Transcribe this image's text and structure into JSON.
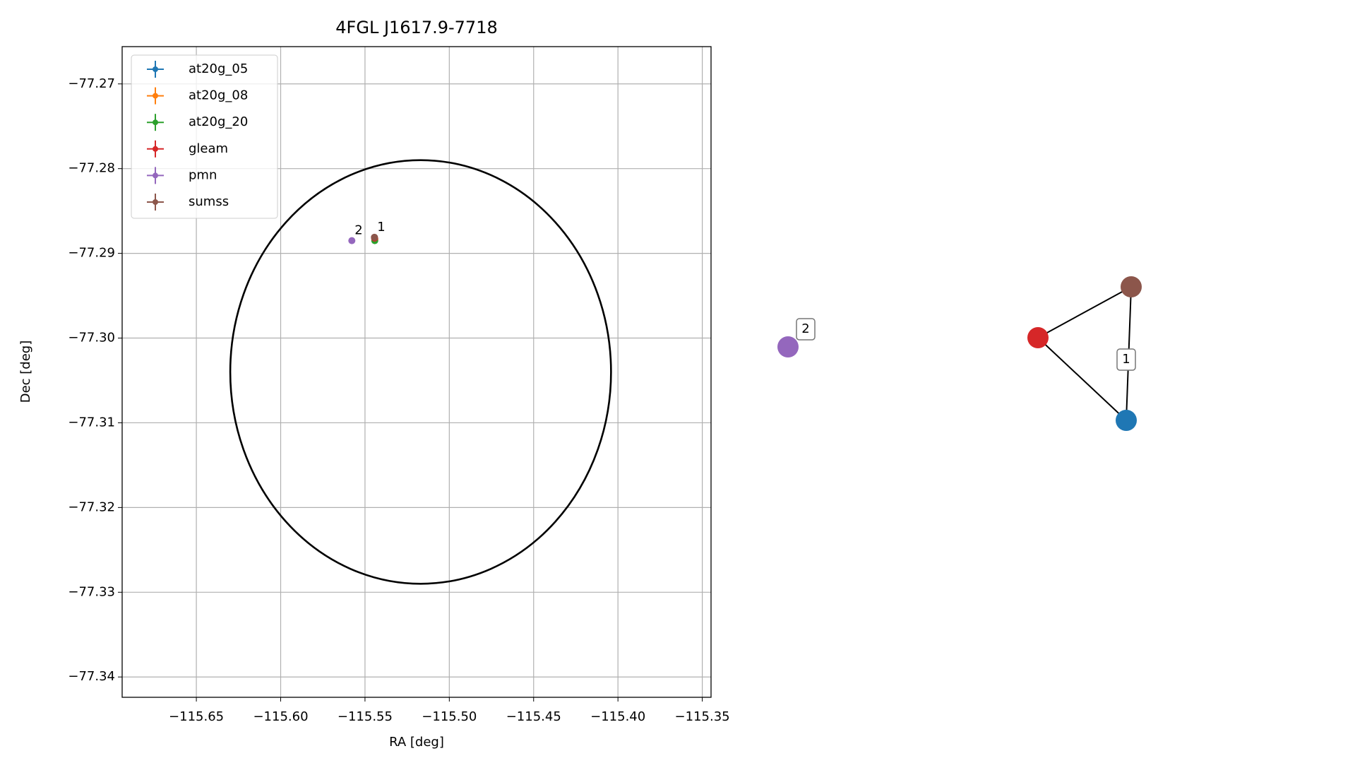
{
  "chart_data": {
    "type": "scatter",
    "title": "4FGL J1617.9-7718",
    "x_label": "RA [deg]",
    "y_label": "Dec [deg]",
    "xlim": [
      -115.694,
      -115.3448
    ],
    "ylim": [
      -77.3424,
      -77.2656
    ],
    "xticks": [
      {
        "value": -115.65,
        "label": "−115.65"
      },
      {
        "value": -115.6,
        "label": "−115.60"
      },
      {
        "value": -115.55,
        "label": "−115.55"
      },
      {
        "value": -115.5,
        "label": "−115.50"
      },
      {
        "value": -115.45,
        "label": "−115.45"
      },
      {
        "value": -115.4,
        "label": "−115.40"
      },
      {
        "value": -115.35,
        "label": "−115.35"
      }
    ],
    "yticks": [
      {
        "value": -77.27,
        "label": "−77.27"
      },
      {
        "value": -77.28,
        "label": "−77.28"
      },
      {
        "value": -77.29,
        "label": "−77.29"
      },
      {
        "value": -77.3,
        "label": "−77.30"
      },
      {
        "value": -77.31,
        "label": "−77.31"
      },
      {
        "value": -77.32,
        "label": "−77.32"
      },
      {
        "value": -77.33,
        "label": "−77.33"
      },
      {
        "value": -77.34,
        "label": "−77.34"
      }
    ],
    "grid": true,
    "legend": "upper left",
    "series": [
      {
        "name": "at20g_05",
        "color": "#1f77b4",
        "x": [
          -115.5442
        ],
        "y": [
          -77.2883
        ]
      },
      {
        "name": "at20g_08",
        "color": "#ff7f0e",
        "x": [
          -115.5442
        ],
        "y": [
          -77.2883
        ]
      },
      {
        "name": "at20g_20",
        "color": "#2ca02c",
        "x": [
          -115.5442
        ],
        "y": [
          -77.2885
        ]
      },
      {
        "name": "gleam",
        "color": "#d62728",
        "x": [
          -115.5443
        ],
        "y": [
          -77.2882
        ]
      },
      {
        "name": "pmn",
        "color": "#9467bd",
        "x": [
          -115.5578
        ],
        "y": [
          -77.2885
        ]
      },
      {
        "name": "sumss",
        "color": "#8c564b",
        "x": [
          -115.5444
        ],
        "y": [
          -77.2881
        ]
      }
    ],
    "region": {
      "ra": -115.517,
      "dec": -77.304,
      "ra_radius": 0.1129,
      "dec_radius": 0.025
    },
    "annotations": [
      {
        "text": "2",
        "x": -115.5578,
        "y": -77.2885
      },
      {
        "text": "1",
        "x": -115.5444,
        "y": -77.2881
      }
    ]
  },
  "graph": {
    "nodes": [
      {
        "color": "#9467bd"
      },
      {
        "color": "#d62728"
      },
      {
        "color": "#8c564b"
      },
      {
        "color": "#1f77b4"
      }
    ],
    "edges": [
      [
        1,
        2
      ],
      [
        1,
        3
      ],
      [
        2,
        3
      ]
    ],
    "labels": [
      {
        "text": "2"
      },
      {
        "text": "1"
      }
    ]
  }
}
